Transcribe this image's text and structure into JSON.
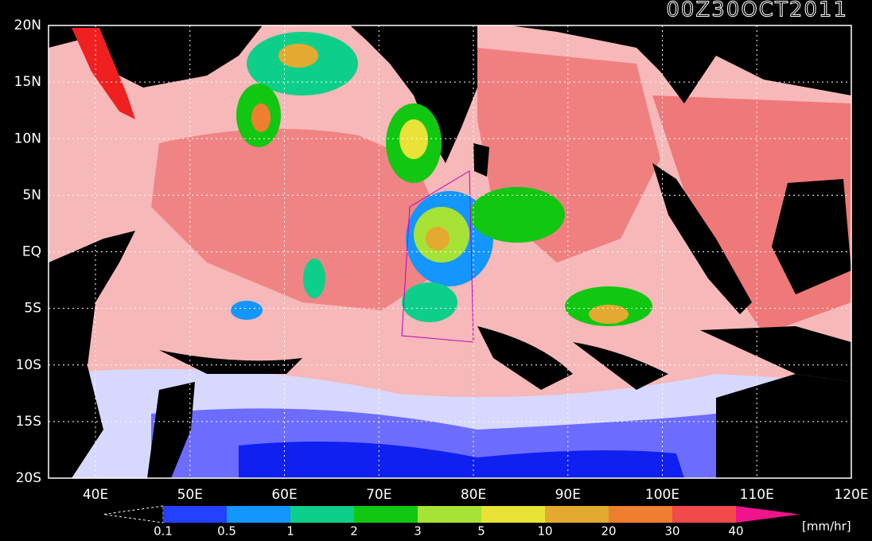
{
  "header": {
    "title": "00Z30OCT2011"
  },
  "map": {
    "lat_labels": [
      "20N",
      "15N",
      "10N",
      "5N",
      "EQ",
      "5S",
      "10S",
      "15S",
      "20S"
    ],
    "lon_labels": [
      "40E",
      "50E",
      "60E",
      "70E",
      "80E",
      "90E",
      "100E",
      "110E",
      "120E"
    ]
  },
  "colorbar": {
    "bounds": [
      0.1,
      0.5,
      1,
      2,
      3,
      5,
      10,
      20,
      30,
      40
    ],
    "colors": [
      "#2341ff",
      "#1496ff",
      "#0ecf8a",
      "#11c711",
      "#a6e336",
      "#e8e336",
      "#e4aa2f",
      "#ef7f2f",
      "#f24a4a",
      "#f0148c"
    ],
    "unit": "[mm/hr]"
  }
}
